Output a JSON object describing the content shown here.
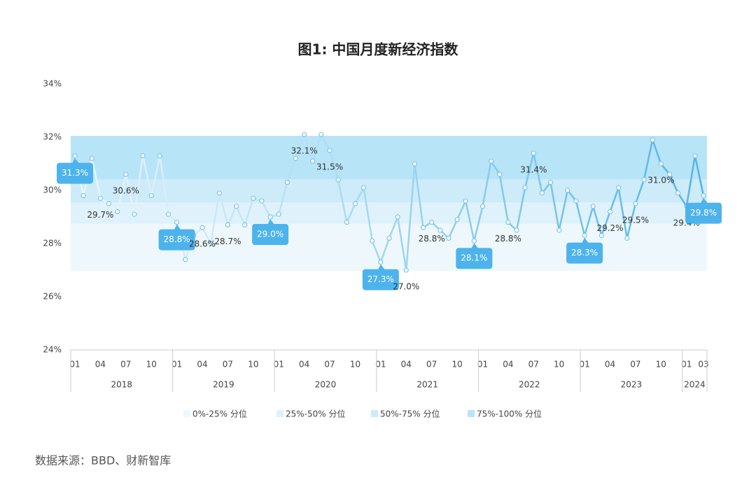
{
  "chart_data": {
    "type": "line",
    "title": "图1: 中国月度新经济指数",
    "categories": [
      "01",
      null,
      null,
      "04",
      null,
      null,
      "07",
      null,
      null,
      "10",
      null,
      null,
      "01",
      null,
      null,
      "04",
      null,
      null,
      "07",
      null,
      null,
      "10",
      null,
      null,
      "01",
      null,
      null,
      "04",
      null,
      null,
      "07",
      null,
      null,
      "10",
      null,
      null,
      "01",
      null,
      null,
      "04",
      null,
      null,
      "07",
      null,
      null,
      "10",
      null,
      null,
      "01",
      null,
      null,
      "04",
      null,
      null,
      "07",
      null,
      null,
      "10",
      null,
      null,
      "01",
      null,
      null,
      "04",
      null,
      null,
      "07",
      null,
      null,
      "10",
      null,
      null,
      "01",
      null,
      "03"
    ],
    "years": [
      "2018",
      "2019",
      "2020",
      "2021",
      "2022",
      "2023",
      "2024"
    ],
    "values": [
      31.3,
      29.8,
      31.2,
      29.7,
      29.5,
      29.2,
      30.6,
      29.1,
      31.3,
      29.8,
      31.3,
      29.1,
      28.8,
      27.4,
      28.3,
      28.6,
      28.0,
      29.9,
      28.7,
      29.4,
      28.7,
      29.7,
      29.6,
      29.0,
      29.1,
      30.3,
      31.2,
      32.1,
      31.1,
      32.1,
      31.5,
      30.4,
      28.8,
      29.5,
      30.1,
      28.1,
      27.3,
      28.2,
      29.0,
      27.0,
      31.0,
      28.6,
      28.8,
      28.5,
      28.2,
      28.9,
      29.6,
      28.1,
      29.4,
      31.1,
      30.6,
      28.8,
      28.5,
      30.1,
      31.4,
      29.9,
      30.3,
      28.5,
      30.0,
      29.6,
      28.3,
      29.4,
      28.3,
      29.2,
      30.1,
      28.2,
      29.5,
      30.4,
      31.9,
      31.0,
      30.6,
      29.9,
      29.4,
      31.3,
      29.8
    ],
    "value_labels": [
      "31.3%",
      null,
      null,
      "29.7%",
      null,
      null,
      "30.6%",
      null,
      null,
      null,
      null,
      null,
      "28.8%",
      null,
      null,
      "28.6%",
      null,
      null,
      "28.7%",
      null,
      null,
      null,
      null,
      "29.0%",
      null,
      null,
      null,
      "32.1%",
      null,
      null,
      "31.5%",
      null,
      null,
      null,
      null,
      null,
      "27.3%",
      null,
      null,
      "27.0%",
      null,
      null,
      "28.8%",
      null,
      null,
      null,
      null,
      "28.1%",
      null,
      null,
      null,
      "28.8%",
      null,
      null,
      "31.4%",
      null,
      null,
      null,
      null,
      null,
      "28.3%",
      null,
      null,
      "29.2%",
      null,
      null,
      "29.5%",
      null,
      null,
      "31.0%",
      null,
      null,
      "29.4%",
      null,
      "29.8%"
    ],
    "label_styles": [
      "box",
      null,
      null,
      "plain",
      null,
      null,
      "plain",
      null,
      null,
      null,
      null,
      null,
      "box",
      null,
      null,
      "plain",
      null,
      null,
      "plain",
      null,
      null,
      null,
      null,
      "box",
      null,
      null,
      null,
      "plain",
      null,
      null,
      "plain",
      null,
      null,
      null,
      null,
      null,
      "box",
      null,
      null,
      "plain",
      null,
      null,
      "plain",
      null,
      null,
      null,
      null,
      "box",
      null,
      null,
      null,
      "plain",
      null,
      null,
      "plain",
      null,
      null,
      null,
      null,
      null,
      "box",
      null,
      null,
      "plain",
      null,
      null,
      "plain",
      null,
      null,
      "plain",
      null,
      null,
      "plain",
      null,
      "box"
    ],
    "color_start": "#eef8fc",
    "color_end": "#52b4e6",
    "marker_color": "#7cc6ea",
    "box_color": "#4db3ec",
    "ylim": [
      24,
      34
    ],
    "yticks": [
      {
        "value": 24,
        "label": "24%"
      },
      {
        "value": 26,
        "label": "26%"
      },
      {
        "value": 28,
        "label": "28%"
      },
      {
        "value": 30,
        "label": "30%"
      },
      {
        "value": 32,
        "label": "32%"
      },
      {
        "value": 34,
        "label": "34%"
      }
    ],
    "bands": [
      {
        "name": "0%-25% 分位",
        "color": "#eef8fc",
        "range": [
          26.97,
          28.74
        ]
      },
      {
        "name": "25%-50% 分位",
        "color": "#dff2fb",
        "range": [
          28.74,
          29.55
        ]
      },
      {
        "name": "50%-75% 分位",
        "color": "#cdebf9",
        "range": [
          29.55,
          30.42
        ]
      },
      {
        "name": "75%-100% 分位",
        "color": "#b8e4f8",
        "range": [
          30.42,
          32.05
        ]
      }
    ],
    "source": "数据来源：BBD、财新智库"
  }
}
